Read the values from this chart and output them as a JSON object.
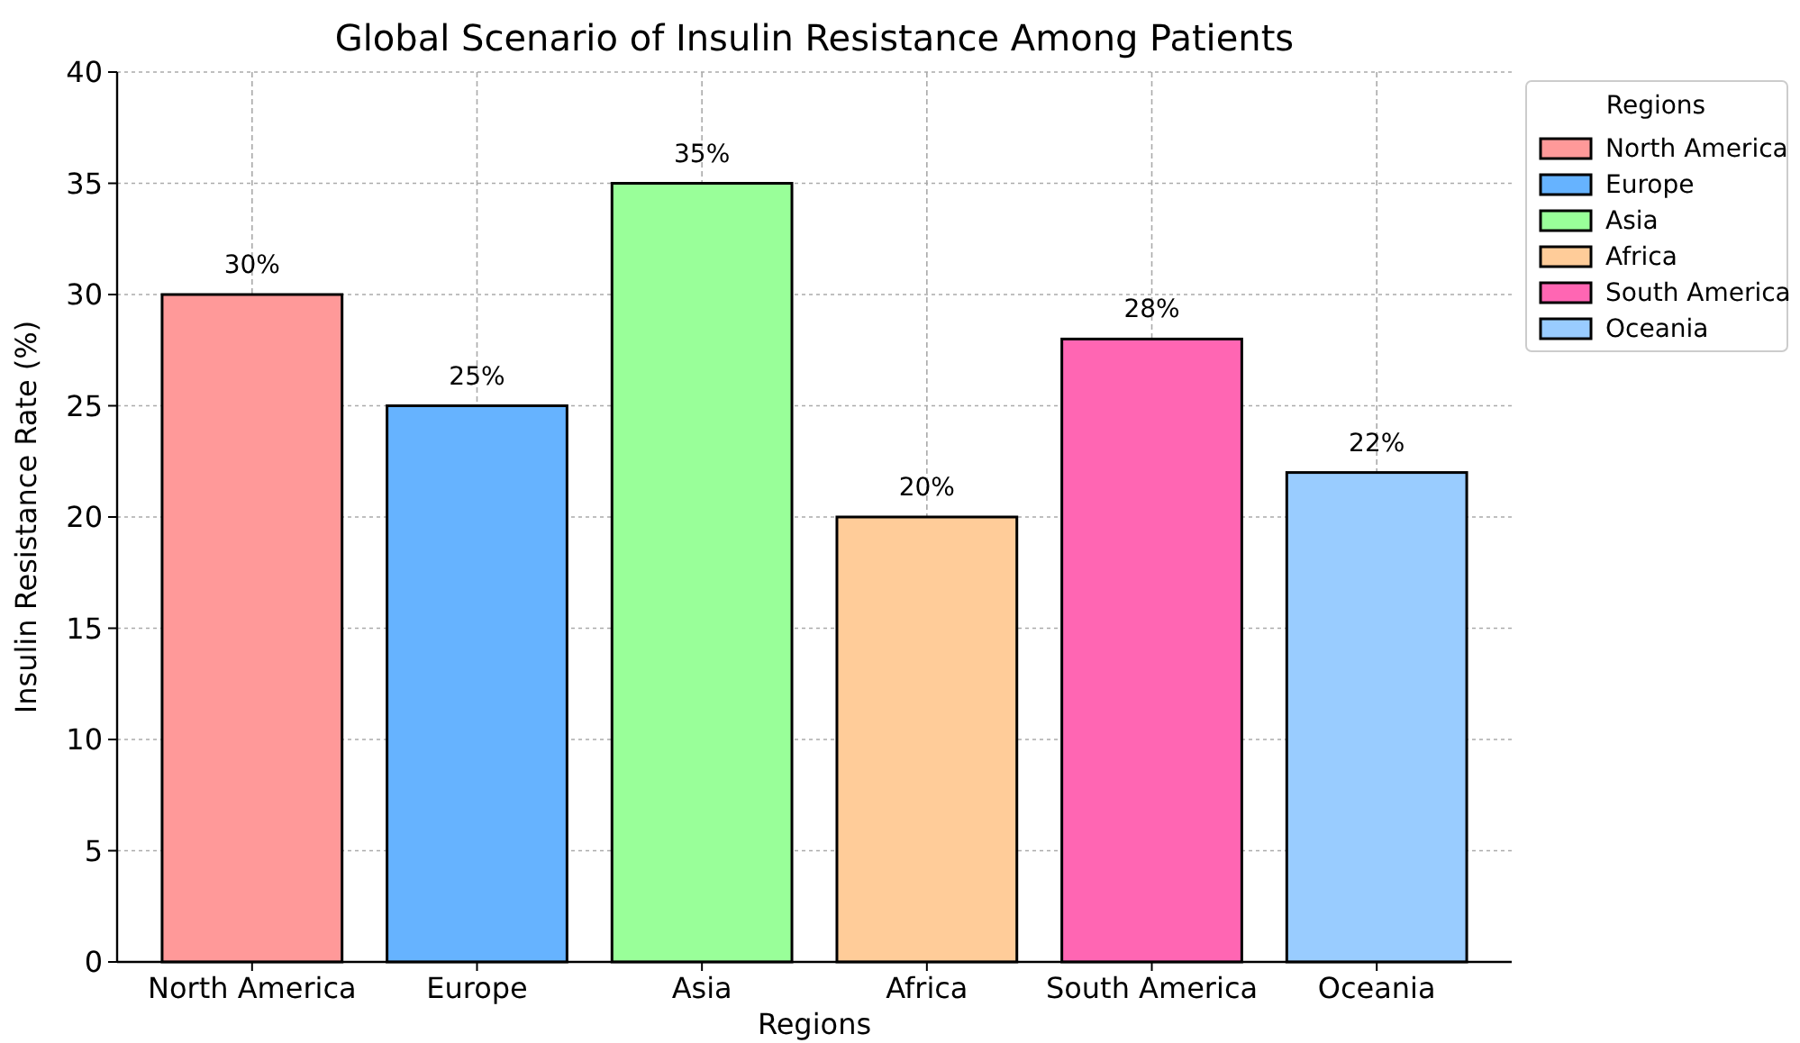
{
  "chart_data": {
    "type": "bar",
    "title": "Global Scenario of Insulin Resistance Among Patients",
    "xlabel": "Regions",
    "ylabel": "Insulin Resistance Rate (%)",
    "legend_title": "Regions",
    "categories": [
      "North America",
      "Europe",
      "Asia",
      "Africa",
      "South America",
      "Oceania"
    ],
    "series": [
      {
        "name": "North America",
        "color": "#ff9999",
        "values": [
          30,
          null,
          null,
          null,
          null,
          null
        ],
        "value_labels": [
          "30%",
          null,
          null,
          null,
          null,
          null
        ]
      },
      {
        "name": "Europe",
        "color": "#66b3ff",
        "values": [
          null,
          25,
          null,
          null,
          null,
          null
        ],
        "value_labels": [
          null,
          "25%",
          null,
          null,
          null,
          null
        ]
      },
      {
        "name": "Asia",
        "color": "#99ff99",
        "values": [
          null,
          null,
          35,
          null,
          null,
          null
        ],
        "value_labels": [
          null,
          null,
          "35%",
          null,
          null,
          null
        ]
      },
      {
        "name": "Africa",
        "color": "#ffcc99",
        "values": [
          null,
          null,
          null,
          20,
          null,
          null
        ],
        "value_labels": [
          null,
          null,
          null,
          "20%",
          null,
          null
        ]
      },
      {
        "name": "South America",
        "color": "#ff66b3",
        "values": [
          null,
          null,
          null,
          null,
          28,
          null
        ],
        "value_labels": [
          null,
          null,
          null,
          null,
          "28%",
          null
        ]
      },
      {
        "name": "Oceania",
        "color": "#99ccff",
        "values": [
          null,
          null,
          null,
          null,
          null,
          22
        ],
        "value_labels": [
          null,
          null,
          null,
          null,
          null,
          "22%"
        ]
      }
    ],
    "ylim": [
      0,
      40
    ],
    "yticks": [
      0,
      5,
      10,
      15,
      20,
      25,
      30,
      35,
      40
    ],
    "grid": true,
    "legend": "top right"
  }
}
